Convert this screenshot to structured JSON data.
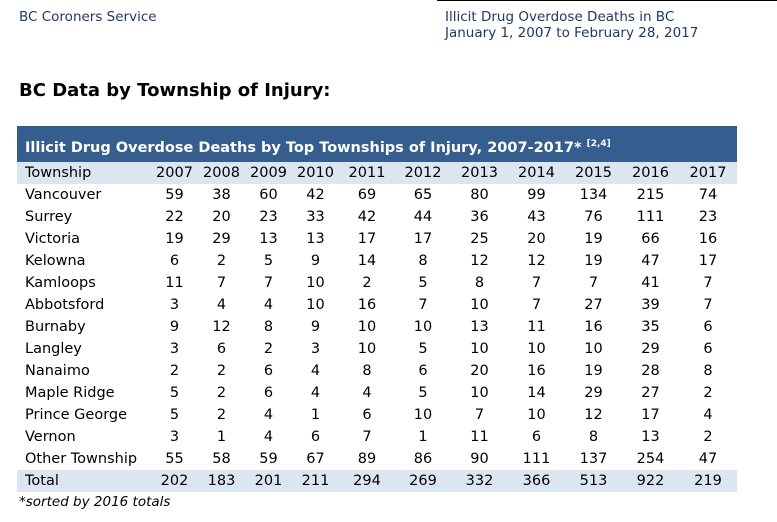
{
  "header": {
    "left": "BC Coroners Service",
    "right_line1": "Illicit Drug Overdose Deaths in BC",
    "right_line2": "January 1, 2007 to February 28, 2017"
  },
  "section_title": "BC Data by Township of Injury:",
  "table": {
    "title": "Illicit Drug Overdose Deaths by Top Townships of Injury, 2007-2017*",
    "title_sup": "[2,4]",
    "columns": [
      "Township",
      "2007",
      "2008",
      "2009",
      "2010",
      "2011",
      "2012",
      "2013",
      "2014",
      "2015",
      "2016",
      "2017"
    ],
    "rows": [
      [
        "Vancouver",
        "59",
        "38",
        "60",
        "42",
        "69",
        "65",
        "80",
        "99",
        "134",
        "215",
        "74"
      ],
      [
        "Surrey",
        "22",
        "20",
        "23",
        "33",
        "42",
        "44",
        "36",
        "43",
        "76",
        "111",
        "23"
      ],
      [
        "Victoria",
        "19",
        "29",
        "13",
        "13",
        "17",
        "17",
        "25",
        "20",
        "19",
        "66",
        "16"
      ],
      [
        "Kelowna",
        "6",
        "2",
        "5",
        "9",
        "14",
        "8",
        "12",
        "12",
        "19",
        "47",
        "17"
      ],
      [
        "Kamloops",
        "11",
        "7",
        "7",
        "10",
        "2",
        "5",
        "8",
        "7",
        "7",
        "41",
        "7"
      ],
      [
        "Abbotsford",
        "3",
        "4",
        "4",
        "10",
        "16",
        "7",
        "10",
        "7",
        "27",
        "39",
        "7"
      ],
      [
        "Burnaby",
        "9",
        "12",
        "8",
        "9",
        "10",
        "10",
        "13",
        "11",
        "16",
        "35",
        "6"
      ],
      [
        "Langley",
        "3",
        "6",
        "2",
        "3",
        "10",
        "5",
        "10",
        "10",
        "10",
        "29",
        "6"
      ],
      [
        "Nanaimo",
        "2",
        "2",
        "6",
        "4",
        "8",
        "6",
        "20",
        "16",
        "19",
        "28",
        "8"
      ],
      [
        "Maple Ridge",
        "5",
        "2",
        "6",
        "4",
        "4",
        "5",
        "10",
        "14",
        "29",
        "27",
        "2"
      ],
      [
        "Prince George",
        "5",
        "2",
        "4",
        "1",
        "6",
        "10",
        "7",
        "10",
        "12",
        "17",
        "4"
      ],
      [
        "Vernon",
        "3",
        "1",
        "4",
        "6",
        "7",
        "1",
        "11",
        "6",
        "8",
        "13",
        "2"
      ],
      [
        "Other Township",
        "55",
        "58",
        "59",
        "67",
        "89",
        "86",
        "90",
        "111",
        "137",
        "254",
        "47"
      ]
    ],
    "total": [
      "Total",
      "202",
      "183",
      "201",
      "211",
      "294",
      "269",
      "332",
      "366",
      "513",
      "922",
      "219"
    ]
  },
  "footnote": "*sorted by 2016 totals"
}
